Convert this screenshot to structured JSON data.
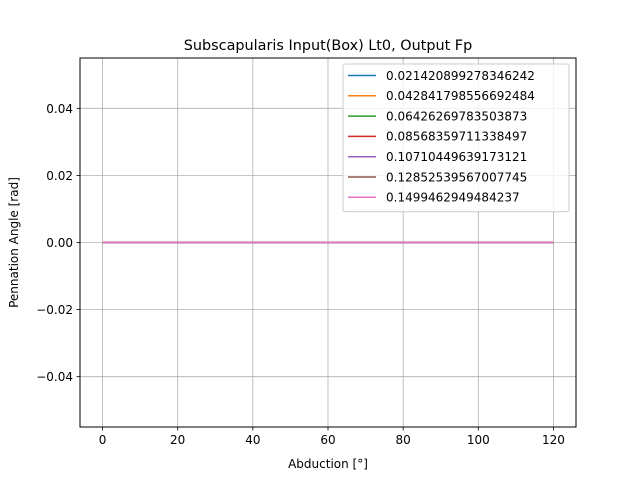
{
  "chart_data": {
    "type": "line",
    "title": "Subscapularis Input(Box) Lt0, Output Fp",
    "xlabel": "Abduction [°]",
    "ylabel": "Pennation Angle [rad]",
    "xlim": [
      -6,
      126
    ],
    "ylim": [
      -0.055,
      0.055
    ],
    "xticks": [
      0,
      20,
      40,
      60,
      80,
      100,
      120
    ],
    "xtick_labels": [
      "0",
      "20",
      "40",
      "60",
      "80",
      "100",
      "120"
    ],
    "yticks": [
      -0.04,
      -0.02,
      0.0,
      0.02,
      0.04
    ],
    "ytick_labels": [
      "−0.04",
      "−0.02",
      "0.00",
      "0.02",
      "0.04"
    ],
    "grid": true,
    "legend_position": "top-right",
    "x": [
      0,
      120
    ],
    "series": [
      {
        "name": "0.021420899278346242",
        "color": "#1f77b4",
        "values": [
          0,
          0
        ]
      },
      {
        "name": "0.042841798556692484",
        "color": "#ff7f0e",
        "values": [
          0,
          0
        ]
      },
      {
        "name": "0.06426269783503873",
        "color": "#2ca02c",
        "values": [
          0,
          0
        ]
      },
      {
        "name": "0.08568359711338497",
        "color": "#d62728",
        "values": [
          0,
          0
        ]
      },
      {
        "name": "0.10710449639173121",
        "color": "#9467bd",
        "values": [
          0,
          0
        ]
      },
      {
        "name": "0.12852539567007745",
        "color": "#8c564b",
        "values": [
          0,
          0
        ]
      },
      {
        "name": "0.1499462949484237",
        "color": "#e377c2",
        "values": [
          0,
          0
        ]
      }
    ]
  }
}
